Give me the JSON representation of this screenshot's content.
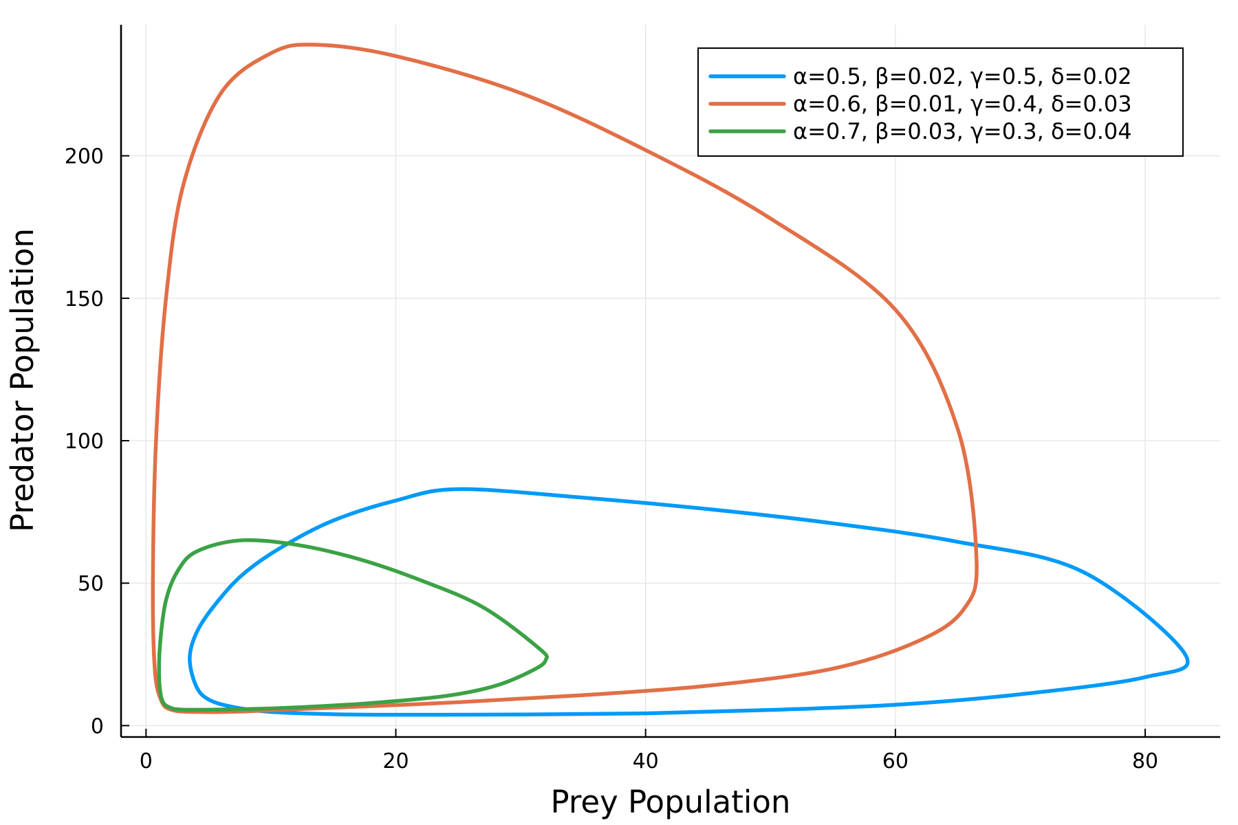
{
  "chart_data": {
    "type": "line",
    "xlabel": "Prey Population",
    "ylabel": "Predator Population",
    "xlim": [
      -2,
      86
    ],
    "ylim": [
      -4,
      246
    ],
    "xticks": [
      0,
      20,
      40,
      60,
      80
    ],
    "yticks": [
      0,
      50,
      100,
      150,
      200
    ],
    "grid": true,
    "legend_position": "top-right",
    "series": [
      {
        "name": "α=0.5, β=0.02, γ=0.5, δ=0.02",
        "color": "#009af9",
        "x": [
          25,
          35,
          45,
          55,
          65,
          75,
          83.2,
          80,
          70,
          60,
          50,
          40,
          30,
          20,
          15,
          10,
          7,
          5,
          4,
          3.5,
          4.2,
          6,
          8,
          11,
          15,
          20,
          25
        ],
        "y": [
          83,
          80,
          76,
          71,
          64.5,
          54,
          25,
          17,
          11,
          7.3,
          5.5,
          4.3,
          3.9,
          3.8,
          4.0,
          4.8,
          6.5,
          9.2,
          14,
          24,
          34,
          45,
          54,
          63,
          72,
          79,
          83
        ]
      },
      {
        "name": "α=0.6, β=0.01, γ=0.4, δ=0.03",
        "color": "#e26f46",
        "x": [
          13.5,
          20,
          30,
          40,
          50,
          60,
          65,
          66.5,
          65.5,
          62,
          55,
          45,
          35,
          25,
          15,
          8,
          4,
          2,
          1.2,
          0.7,
          0.55,
          0.8,
          1.6,
          3,
          6,
          10,
          13.5
        ],
        "y": [
          239,
          235,
          222,
          202,
          178,
          146,
          104,
          58,
          41,
          30,
          20,
          14,
          10.7,
          8.2,
          6.3,
          5.0,
          4.8,
          5.6,
          9,
          20,
          50,
          100,
          150,
          190,
          222,
          236,
          239
        ]
      },
      {
        "name": "α=0.7, β=0.03, γ=0.3, δ=0.04",
        "color": "#3ba245",
        "x": [
          7.5,
          12,
          17,
          22,
          27,
          31.5,
          32,
          31,
          28,
          24,
          18,
          13,
          9,
          5,
          3,
          2,
          1.3,
          1.05,
          1.15,
          1.6,
          2.5,
          4,
          7.5
        ],
        "y": [
          65,
          63.5,
          58.5,
          51,
          41.5,
          27,
          23,
          19.5,
          14,
          10.4,
          7.9,
          6.6,
          5.9,
          5.6,
          5.6,
          6.2,
          8.8,
          17,
          30,
          44,
          54,
          61,
          65
        ]
      }
    ]
  }
}
